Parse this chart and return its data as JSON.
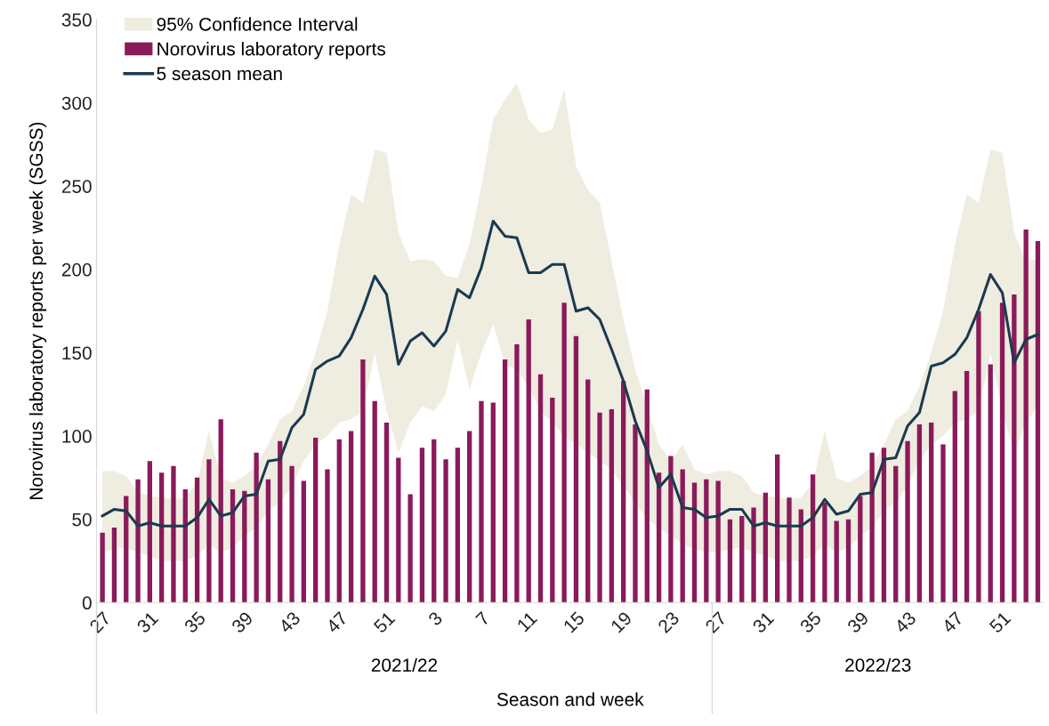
{
  "chart_data": {
    "type": "bar",
    "xlabel": "Season and week",
    "ylabel": "Norovirus laboratory reports per week (SGSS)",
    "categories": [
      "27",
      null,
      null,
      null,
      "31",
      null,
      null,
      null,
      "35",
      null,
      null,
      null,
      "39",
      null,
      null,
      null,
      "43",
      null,
      null,
      null,
      "47",
      null,
      null,
      null,
      "51",
      null,
      null,
      null,
      "3",
      null,
      null,
      null,
      "7",
      null,
      null,
      null,
      "11",
      null,
      null,
      null,
      "15",
      null,
      null,
      null,
      "19",
      null,
      null,
      null,
      "23",
      null,
      null,
      null,
      "27",
      null,
      null,
      null,
      "31",
      null,
      null,
      null,
      "35",
      null,
      null,
      null,
      "39",
      null,
      null,
      null,
      "43",
      null,
      null,
      null,
      "47",
      null,
      null,
      null,
      "51",
      null,
      null,
      null
    ],
    "annotations": [
      "2021/22",
      "2022/23"
    ],
    "series": [
      {
        "type": "area",
        "name": "95% Confidence Interval",
        "color": "#efece0",
        "values": [
          null,
          null,
          null,
          null,
          null,
          null,
          null,
          null,
          null,
          null,
          null,
          null,
          null,
          null,
          null,
          null,
          null,
          null,
          null,
          null,
          null,
          null,
          null,
          null,
          null,
          null,
          null,
          null,
          null,
          null,
          null,
          null,
          null,
          null,
          null,
          null,
          null,
          null,
          null,
          null,
          null,
          null,
          null,
          null,
          null,
          null,
          null,
          null,
          null,
          null,
          null,
          null,
          null,
          null,
          null,
          null,
          null,
          null,
          null,
          null,
          null,
          null,
          null,
          null,
          null,
          null,
          null,
          null,
          null,
          null,
          null,
          null,
          null,
          null,
          null,
          null,
          null,
          null,
          null,
          null
        ]
      },
      {
        "type": "bar",
        "name": "Norovirus laboratory reports",
        "color": "#8b1a5b",
        "values": [
          42,
          45,
          64,
          74,
          85,
          78,
          82,
          68,
          75,
          86,
          110,
          68,
          67,
          90,
          74,
          97,
          82,
          73,
          99,
          80,
          98,
          103,
          146,
          121,
          108,
          87,
          65,
          93,
          98,
          86,
          93,
          103,
          121,
          120,
          146,
          155,
          170,
          137,
          123,
          180,
          160,
          134,
          114,
          116,
          133,
          107,
          128,
          78,
          88,
          80,
          72,
          74,
          73,
          50,
          52,
          57,
          66,
          89,
          63,
          56,
          77,
          60,
          49,
          50,
          64,
          90,
          93,
          82,
          97,
          107,
          108,
          95,
          127,
          139,
          175,
          143,
          180,
          185,
          224,
          217
        ]
      },
      {
        "type": "line",
        "name": "5 season mean",
        "color": "#1b3a4f",
        "values": [
          52,
          56,
          55,
          46,
          48,
          46,
          46,
          46,
          51,
          62,
          52,
          54,
          64,
          65,
          85,
          86,
          105,
          113,
          140,
          145,
          148,
          159,
          176,
          196,
          185,
          143,
          157,
          162,
          154,
          163,
          188,
          183,
          201,
          229,
          220,
          219,
          198,
          198,
          203,
          203,
          175,
          177,
          170,
          152,
          133,
          109,
          91,
          69,
          77,
          57,
          56,
          51,
          52,
          56,
          56,
          46,
          48,
          46,
          46,
          46,
          51,
          62,
          53,
          55,
          65,
          66,
          86,
          87,
          106,
          114,
          142,
          144,
          149,
          159,
          176,
          197,
          186,
          144,
          158,
          161
        ],
        "lower": [
          30,
          32,
          33,
          30,
          28,
          25,
          25,
          25,
          28,
          35,
          30,
          33,
          40,
          45,
          55,
          60,
          70,
          85,
          95,
          100,
          108,
          110,
          115,
          150,
          115,
          90,
          108,
          118,
          115,
          125,
          158,
          128,
          150,
          167,
          143,
          140,
          130,
          115,
          108,
          100,
          95,
          90,
          85,
          80,
          70,
          60,
          50,
          45,
          40,
          35,
          32,
          30,
          30,
          32,
          33,
          30,
          28,
          25,
          25,
          25,
          28,
          35,
          30,
          33,
          40,
          45,
          55,
          60,
          70,
          85,
          95,
          100,
          108,
          110,
          115,
          150,
          115,
          90,
          108,
          118
        ],
        "upper": [
          79,
          79,
          76,
          66,
          64,
          63,
          62,
          63,
          72,
          103,
          75,
          72,
          76,
          82,
          95,
          110,
          115,
          130,
          150,
          175,
          215,
          245,
          240,
          272,
          270,
          222,
          205,
          206,
          205,
          196,
          195,
          215,
          250,
          290,
          302,
          312,
          290,
          282,
          284,
          308,
          262,
          248,
          240,
          205,
          170,
          140,
          118,
          95,
          85,
          95,
          80,
          77,
          79,
          79,
          76,
          66,
          64,
          63,
          62,
          63,
          72,
          103,
          75,
          72,
          76,
          82,
          95,
          110,
          115,
          130,
          150,
          175,
          215,
          245,
          240,
          272,
          270,
          222,
          205,
          206
        ]
      }
    ],
    "ylim": [
      0,
      350
    ],
    "yticks": [
      0,
      50,
      100,
      150,
      200,
      250,
      300,
      350
    ],
    "grid": false,
    "legend": "top left"
  }
}
